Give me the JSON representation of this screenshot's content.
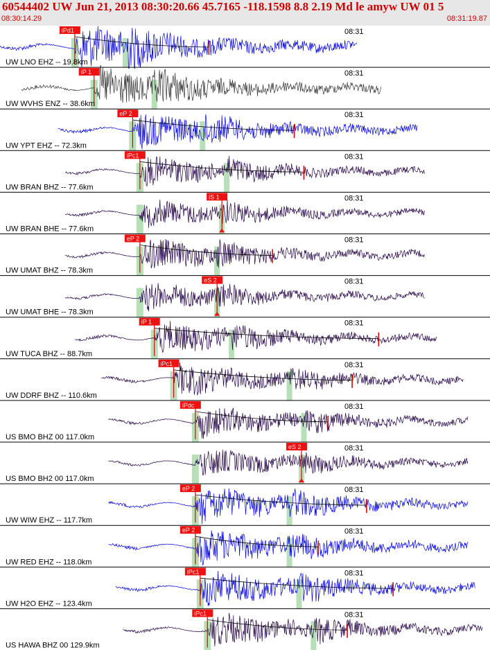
{
  "header": {
    "title": "60544402 UW Jun 21, 2013 08:30:20.66    45.7165 -118.1598  8.8 2.19 Md le amyw UW 01    5",
    "start_time": "08:30:14.29",
    "end_time": "08:31:19.87"
  },
  "tick_label": "08:31",
  "traces": [
    {
      "label": "UW LNO EHZ -- 19.8km",
      "pick": "iPd1",
      "color": "#0000dd",
      "amp": 0.55,
      "start": 0.0,
      "end": 0.74,
      "onset": 0.155,
      "secondary": 0.26,
      "pick2": null,
      "model": 0.433
    },
    {
      "label": "UW WVHS ENZ -- 38.6km",
      "pick": "iP 1",
      "color": "#333333",
      "amp": 0.5,
      "start": 0.045,
      "end": 0.79,
      "onset": 0.195,
      "secondary": 0.32,
      "pick2": null,
      "model": null
    },
    {
      "label": "UW YPT EHZ -- 72.3km",
      "pick": "eP 2",
      "color": "#0000dd",
      "amp": 0.45,
      "start": 0.12,
      "end": 0.865,
      "onset": 0.275,
      "secondary": 0.42,
      "pick2": null,
      "model": 0.61
    },
    {
      "label": "UW BRAN BHZ -- 77.6km",
      "pick": "iPc1",
      "color": "#220044",
      "amp": 0.38,
      "start": 0.135,
      "end": 0.88,
      "onset": 0.29,
      "secondary": 0.47,
      "pick2": null,
      "model": 0.63
    },
    {
      "label": "UW BRAN BHE -- 77.6km",
      "pick": null,
      "color": "#220044",
      "amp": 0.35,
      "start": 0.135,
      "end": 0.88,
      "onset": 0.29,
      "secondary": 0.46,
      "pick2": "iS 1",
      "model": null
    },
    {
      "label": "UW UMAT BHZ -- 78.3km",
      "pick": "eP 2",
      "color": "#220044",
      "amp": 0.4,
      "start": 0.135,
      "end": 0.88,
      "onset": 0.29,
      "secondary": 0.45,
      "pick2": null,
      "model": 0.565
    },
    {
      "label": "UW UMAT BHE -- 78.3km",
      "pick": null,
      "color": "#220044",
      "amp": 0.35,
      "start": 0.135,
      "end": 0.88,
      "onset": 0.29,
      "secondary": 0.45,
      "pick2": "eS 2",
      "model": null
    },
    {
      "label": "UW TUCA BHZ -- 88.7km",
      "pick": "iP 1",
      "color": "#220044",
      "amp": 0.4,
      "start": 0.155,
      "end": 0.905,
      "onset": 0.32,
      "secondary": 0.48,
      "pick2": null,
      "model": 0.785
    },
    {
      "label": "UW DDRF BHZ -- 110.6km",
      "pick": "iPc1",
      "color": "#220044",
      "amp": 0.4,
      "start": 0.21,
      "end": 0.96,
      "onset": 0.36,
      "secondary": 0.6,
      "pick2": null,
      "model": 0.73
    },
    {
      "label": "US BMO BHZ 00 117.0km",
      "pick": "iPdc",
      "color": "#220044",
      "amp": 0.38,
      "start": 0.225,
      "end": 0.97,
      "onset": 0.405,
      "secondary": 0.63,
      "pick2": null,
      "model": 0.68
    },
    {
      "label": "US BMO BH2 00 117.0km",
      "pick": null,
      "color": "#220044",
      "amp": 0.35,
      "start": 0.225,
      "end": 0.97,
      "onset": 0.405,
      "secondary": 0.625,
      "pick2": "eS 2",
      "model": null
    },
    {
      "label": "UW WIW EHZ -- 117.7km",
      "pick": "eP 2",
      "color": "#0000dd",
      "amp": 0.45,
      "start": 0.225,
      "end": 0.97,
      "onset": 0.405,
      "secondary": 0.6,
      "pick2": null,
      "model": 0.76
    },
    {
      "label": "UW RED EHZ -- 118.0km",
      "pick": "eP 2",
      "color": "#0000dd",
      "amp": 0.45,
      "start": 0.225,
      "end": 0.97,
      "onset": 0.405,
      "secondary": 0.6,
      "pick2": null,
      "model": 0.66
    },
    {
      "label": "UW H2O EHZ -- 123.4km",
      "pick": "iPc1",
      "color": "#0000dd",
      "amp": 0.45,
      "start": 0.24,
      "end": 0.985,
      "onset": 0.415,
      "secondary": 0.62,
      "pick2": null,
      "model": 0.815
    },
    {
      "label": "US HAWA BHZ 00 129.9km",
      "pick": "iPc1",
      "color": "#220044",
      "amp": 0.42,
      "start": 0.255,
      "end": 1.0,
      "onset": 0.43,
      "secondary": 0.65,
      "pick2": null,
      "model": 0.72
    }
  ]
}
